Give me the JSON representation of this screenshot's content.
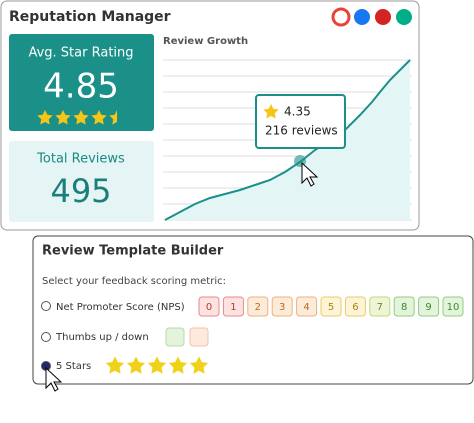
{
  "reputation_manager": {
    "title": "Reputation Manager",
    "avg_rating": {
      "label": "Avg. Star Rating",
      "value": 4.85
    },
    "total_reviews": {
      "label": "Total Reviews",
      "value": 495
    },
    "chart": {
      "title": "Review Growth",
      "tooltip": {
        "rating": 4.35,
        "reviews": "216 reviews"
      }
    }
  },
  "template_builder": {
    "title": "Review Template Builder",
    "prompt": "Select your feedback scoring metric:",
    "options": [
      {
        "label": "Net Promoter Score (NPS)",
        "scale": [
          0,
          1,
          2,
          3,
          4,
          5,
          6,
          7,
          8,
          9,
          10
        ]
      },
      {
        "label": "Thumbs up / down"
      },
      {
        "label": "5 Stars"
      }
    ]
  }
}
